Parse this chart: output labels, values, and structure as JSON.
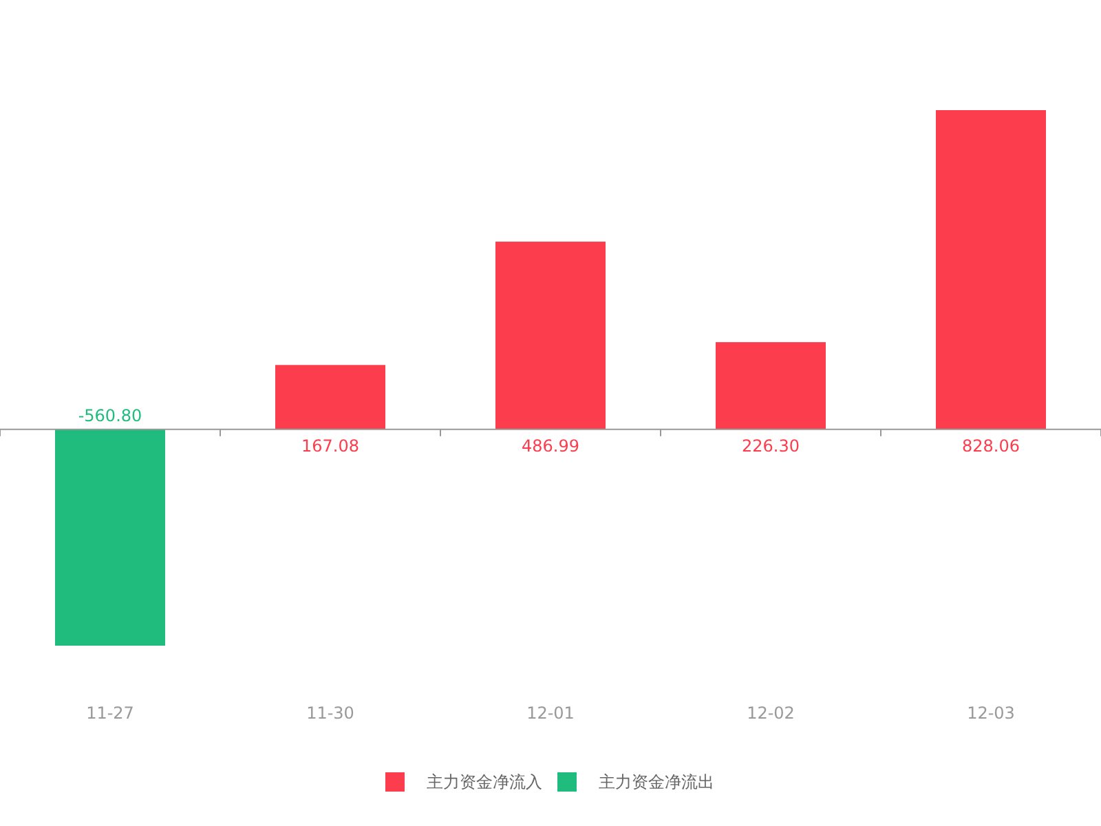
{
  "chart_data": {
    "type": "bar",
    "categories": [
      "11-27",
      "11-30",
      "12-01",
      "12-02",
      "12-03"
    ],
    "series": [
      {
        "name": "主力资金净流入",
        "color": "#fc3d4e",
        "values": [
          null,
          167.08,
          486.99,
          226.3,
          828.06
        ],
        "value_labels": [
          null,
          "167.08",
          "486.99",
          "226.30",
          "828.06"
        ]
      },
      {
        "name": "主力资金净流出",
        "color": "#20bc7e",
        "values": [
          -560.8,
          null,
          null,
          null,
          null
        ],
        "value_labels": [
          "-560.80",
          null,
          null,
          null,
          null
        ]
      }
    ],
    "legend": "bottom"
  }
}
